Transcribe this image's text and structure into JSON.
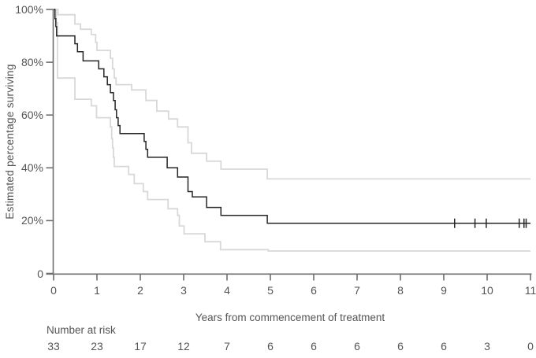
{
  "chart_data": {
    "type": "line",
    "subtype": "kaplan-meier-step",
    "title": "",
    "xlabel": "Years from commencement of treatment",
    "ylabel": "Estimated percentage surviving",
    "xlim": [
      0,
      11
    ],
    "ylim": [
      0,
      100
    ],
    "grid": false,
    "legend": "none",
    "x_ticks": [
      0,
      1,
      2,
      3,
      4,
      5,
      6,
      7,
      8,
      9,
      10,
      11
    ],
    "y_ticks": [
      0,
      20,
      40,
      60,
      80,
      100
    ],
    "y_tick_labels": [
      "0",
      "20%",
      "40%",
      "60%",
      "80%",
      "100%"
    ],
    "series": [
      {
        "name": "KM survival estimate",
        "color": "#262626",
        "width": 1.5,
        "style": "step-after",
        "points": [
          [
            0,
            100
          ],
          [
            0.03,
            96.5
          ],
          [
            0.05,
            93.5
          ],
          [
            0.07,
            90
          ],
          [
            0.49,
            87
          ],
          [
            0.55,
            84
          ],
          [
            0.68,
            80.5
          ],
          [
            1.04,
            77.5
          ],
          [
            1.16,
            74.5
          ],
          [
            1.24,
            71.5
          ],
          [
            1.31,
            68.5
          ],
          [
            1.38,
            65.5
          ],
          [
            1.42,
            62
          ],
          [
            1.45,
            59
          ],
          [
            1.49,
            56
          ],
          [
            1.53,
            53
          ],
          [
            2.09,
            50
          ],
          [
            2.13,
            47
          ],
          [
            2.17,
            44
          ],
          [
            2.62,
            40
          ],
          [
            2.86,
            36.5
          ],
          [
            3.1,
            31
          ],
          [
            3.2,
            29
          ],
          [
            3.53,
            25
          ],
          [
            3.86,
            22
          ],
          [
            4.93,
            19
          ],
          [
            11,
            19
          ]
        ]
      },
      {
        "name": "Upper 95% CI",
        "color": "#d8d8d8",
        "width": 1.8,
        "style": "step-after",
        "points": [
          [
            0,
            100
          ],
          [
            0.1,
            98
          ],
          [
            0.49,
            94.5
          ],
          [
            0.62,
            92.5
          ],
          [
            0.87,
            90.5
          ],
          [
            0.97,
            87.5
          ],
          [
            1.0,
            84.5
          ],
          [
            1.31,
            81.5
          ],
          [
            1.36,
            77.5
          ],
          [
            1.4,
            74
          ],
          [
            1.44,
            71.5
          ],
          [
            1.8,
            69.5
          ],
          [
            2.13,
            65.5
          ],
          [
            2.38,
            61.5
          ],
          [
            2.65,
            58.5
          ],
          [
            2.86,
            55.5
          ],
          [
            3.1,
            49.5
          ],
          [
            3.18,
            45.5
          ],
          [
            3.53,
            42.5
          ],
          [
            3.86,
            39.5
          ],
          [
            4.93,
            35.8
          ],
          [
            11,
            35.8
          ]
        ]
      },
      {
        "name": "Lower 95% CI",
        "color": "#d8d8d8",
        "width": 1.8,
        "style": "step-after",
        "points": [
          [
            0,
            100
          ],
          [
            0.06,
            95
          ],
          [
            0.09,
            74
          ],
          [
            0.49,
            66
          ],
          [
            0.87,
            63.5
          ],
          [
            0.99,
            59
          ],
          [
            1.31,
            55.5
          ],
          [
            1.34,
            51
          ],
          [
            1.36,
            47.5
          ],
          [
            1.38,
            44
          ],
          [
            1.4,
            40.5
          ],
          [
            1.73,
            37.5
          ],
          [
            1.86,
            34
          ],
          [
            2.07,
            31
          ],
          [
            2.17,
            28
          ],
          [
            2.64,
            24.5
          ],
          [
            2.86,
            22
          ],
          [
            2.9,
            18
          ],
          [
            3.01,
            15
          ],
          [
            3.49,
            12
          ],
          [
            3.85,
            9
          ],
          [
            4.95,
            8.5
          ],
          [
            11,
            8.5
          ]
        ]
      }
    ],
    "censor_marks": {
      "series": "KM survival estimate",
      "times": [
        9.25,
        9.72,
        9.98,
        10.74,
        10.85,
        10.9
      ],
      "value": 19
    },
    "number_at_risk": {
      "label": "Number at risk",
      "times": [
        0,
        1,
        2,
        3,
        4,
        5,
        6,
        7,
        8,
        9,
        10,
        11
      ],
      "values": [
        33,
        23,
        17,
        12,
        7,
        6,
        6,
        6,
        6,
        6,
        3,
        0
      ]
    },
    "colors": {
      "axis": "#6e6e6e",
      "text": "#555555",
      "km_line": "#262626",
      "ci_band": "#d8d8d8"
    }
  }
}
